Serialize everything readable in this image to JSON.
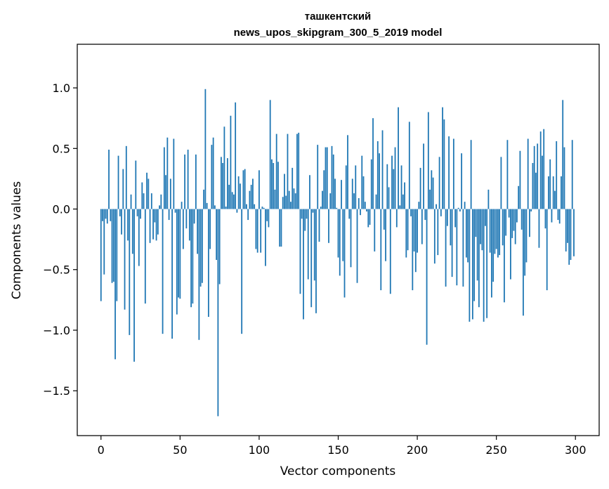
{
  "chart_data": {
    "type": "bar",
    "title_line1": "ташкентский",
    "title_line2": "news_upos_skipgram_300_5_2019 model",
    "xlabel": "Vector components",
    "ylabel": "Components values",
    "xlim": [
      -15,
      315
    ],
    "ylim": [
      -1.87,
      1.36
    ],
    "x_ticks": [
      0,
      50,
      100,
      150,
      200,
      250,
      300
    ],
    "x_tick_labels": [
      "0",
      "50",
      "100",
      "150",
      "200",
      "250",
      "300"
    ],
    "y_ticks": [
      -1.5,
      -1.0,
      -0.5,
      0.0,
      0.5,
      1.0
    ],
    "y_tick_labels": [
      "−1.5",
      "−1.0",
      "−0.5",
      "0.0",
      "0.5",
      "1.0"
    ],
    "bar_color": "#1f77b4",
    "values": [
      -0.76,
      -0.1,
      -0.54,
      -0.08,
      -0.12,
      0.49,
      -0.1,
      -0.61,
      -0.6,
      -1.24,
      -0.76,
      0.44,
      -0.06,
      -0.21,
      0.33,
      -0.83,
      0.52,
      -0.26,
      -1.04,
      0.12,
      -0.37,
      -1.26,
      0.4,
      -0.06,
      -0.47,
      -0.08,
      0.22,
      0.13,
      -0.78,
      0.3,
      0.25,
      -0.28,
      0.13,
      -0.25,
      -0.11,
      -0.26,
      -0.21,
      0.03,
      0.12,
      -1.03,
      0.51,
      0.28,
      0.59,
      -0.09,
      0.25,
      -1.07,
      0.58,
      -0.03,
      -0.87,
      -0.73,
      -0.74,
      0.06,
      -0.33,
      0.45,
      -0.16,
      0.49,
      -0.26,
      -0.81,
      -0.78,
      -0.12,
      0.45,
      -0.37,
      -1.08,
      -0.64,
      -0.61,
      0.16,
      0.99,
      0.05,
      -0.89,
      -0.33,
      0.53,
      0.59,
      0.03,
      -0.42,
      -1.71,
      -0.62,
      0.43,
      0.38,
      0.68,
      0.02,
      0.42,
      0.2,
      0.77,
      0.14,
      0.12,
      0.88,
      -0.03,
      0.27,
      0.21,
      -1.03,
      0.32,
      0.33,
      0.04,
      -0.09,
      0.15,
      0.2,
      0.25,
      0.04,
      -0.33,
      -0.36,
      0.32,
      -0.36,
      0.02,
      0.01,
      -0.47,
      -0.1,
      -0.15,
      0.9,
      0.41,
      0.38,
      0.16,
      0.62,
      0.39,
      -0.31,
      -0.31,
      0.1,
      0.29,
      0.11,
      0.62,
      0.15,
      0.06,
      0.34,
      0.17,
      0.13,
      0.62,
      0.63,
      -0.7,
      -0.08,
      -0.91,
      -0.18,
      -0.08,
      -0.58,
      0.28,
      -0.81,
      -0.03,
      -0.59,
      -0.86,
      0.53,
      -0.27,
      0.02,
      0.15,
      0.32,
      0.51,
      0.51,
      -0.28,
      0.13,
      0.52,
      0.45,
      0.25,
      0.01,
      -0.4,
      -0.55,
      0.24,
      -0.43,
      -0.73,
      0.36,
      0.61,
      -0.08,
      -0.48,
      0.25,
      0.13,
      0.36,
      -0.61,
      0.09,
      -0.05,
      0.44,
      0.27,
      0.06,
      -0.02,
      -0.15,
      -0.13,
      0.41,
      0.75,
      -0.35,
      0.12,
      0.56,
      0.46,
      -0.67,
      0.65,
      -0.17,
      -0.43,
      0.37,
      0.18,
      -0.7,
      0.44,
      0.33,
      0.51,
      -0.15,
      0.84,
      0.03,
      0.36,
      0.12,
      0.22,
      -0.4,
      -0.34,
      0.72,
      -0.06,
      -0.67,
      -0.35,
      -0.52,
      -0.36,
      0.06,
      0.34,
      -0.29,
      0.54,
      -0.09,
      -1.12,
      0.8,
      0.16,
      0.32,
      0.26,
      -0.45,
      0.04,
      -0.38,
      0.43,
      -0.06,
      0.84,
      0.74,
      -0.64,
      -0.14,
      0.6,
      -0.3,
      -0.56,
      0.58,
      -0.15,
      -0.63,
      0.01,
      -0.02,
      0.46,
      -0.64,
      0.06,
      -0.4,
      -0.44,
      -0.93,
      0.57,
      -0.91,
      -0.76,
      -0.23,
      -0.59,
      -0.81,
      -0.29,
      -0.34,
      -0.93,
      -0.14,
      -0.9,
      0.16,
      -0.36,
      -0.73,
      -0.6,
      -0.37,
      -0.33,
      -0.4,
      -0.38,
      0.43,
      -0.3,
      -0.77,
      -0.22,
      0.57,
      -0.07,
      -0.58,
      -0.24,
      -0.18,
      -0.29,
      -0.11,
      0.19,
      0.48,
      -0.17,
      -0.88,
      -0.55,
      -0.44,
      0.58,
      -0.23,
      -0.02,
      0.38,
      0.52,
      0.3,
      0.54,
      -0.32,
      0.64,
      0.44,
      0.66,
      -0.16,
      -0.67,
      0.27,
      0.41,
      -0.11,
      0.27,
      0.15,
      0.56,
      -0.09,
      -0.12,
      0.27,
      0.9,
      0.51,
      -0.35,
      -0.28,
      -0.46,
      -0.42,
      0.57,
      -0.39
    ]
  }
}
